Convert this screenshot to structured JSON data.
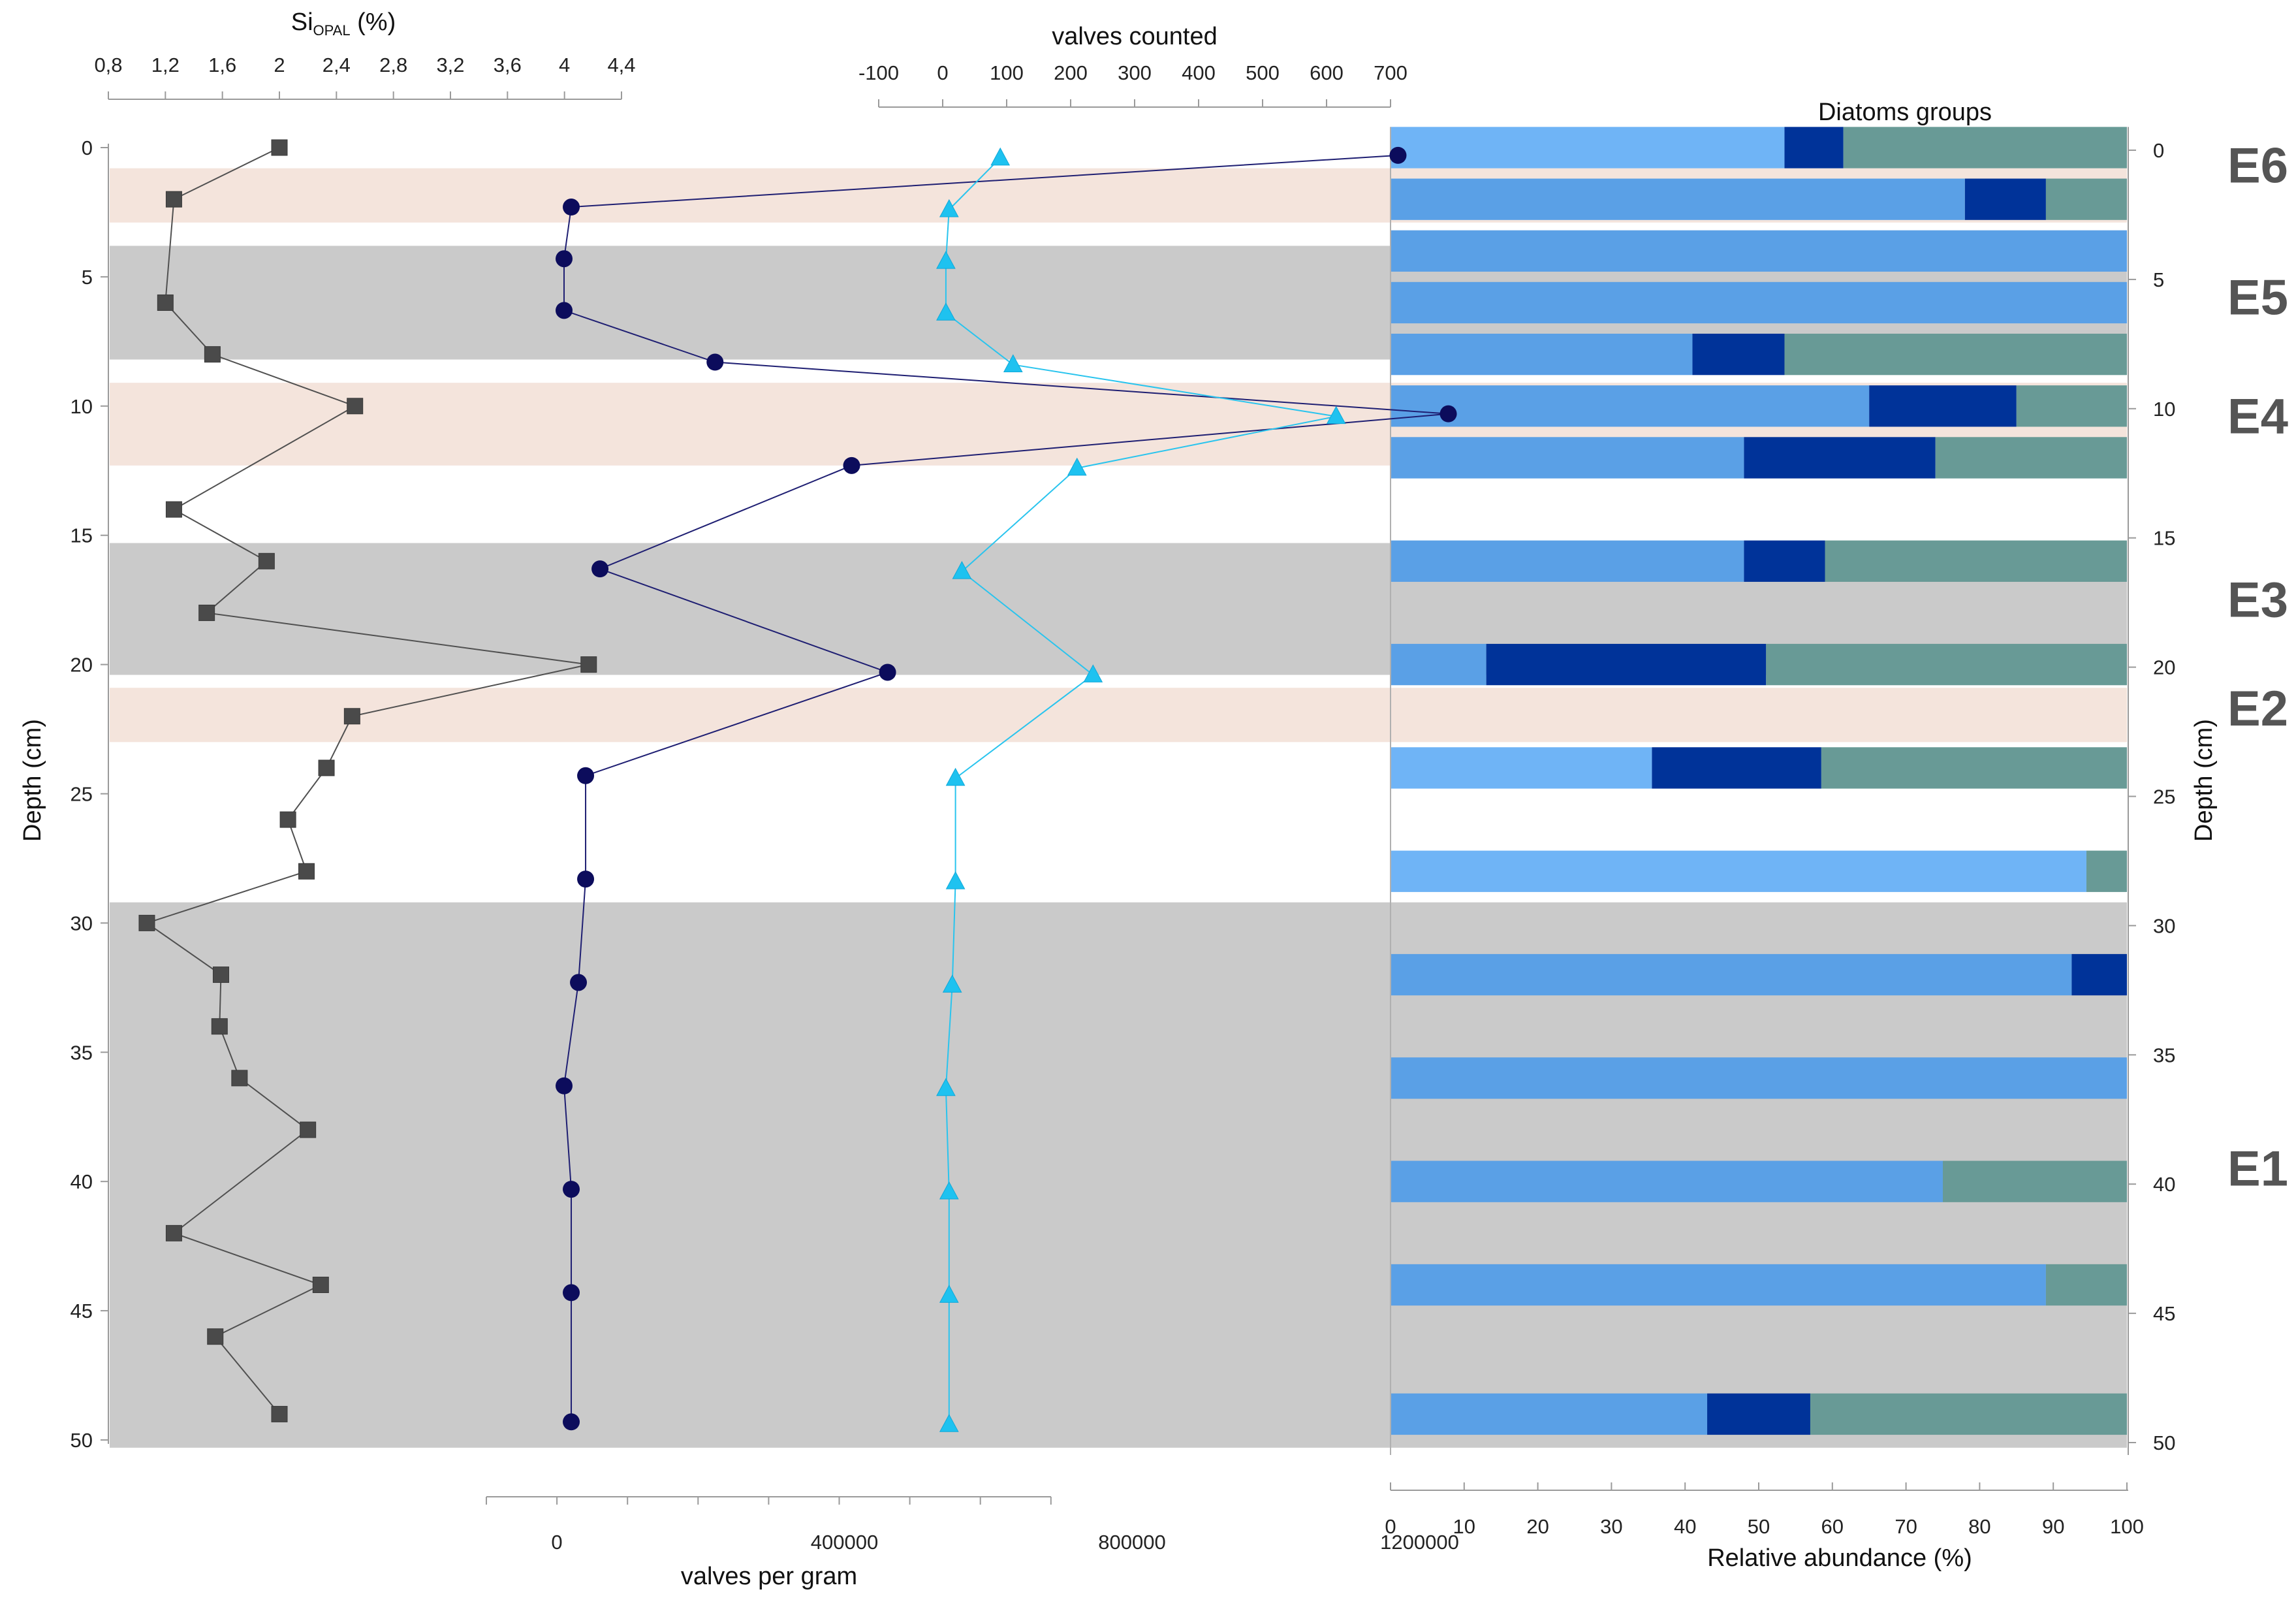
{
  "chart_data": {
    "type": "line",
    "colors": {
      "band_pink": "#f4e4dc",
      "band_gray": "#cacaca",
      "siopal_line": "#505050",
      "vpg_line": "#1e1e72",
      "vpg_marker": "#0c0c5c",
      "vc_line": "#29c4ee",
      "vc_marker": "#1ec2f0",
      "bar_light": "#6fb4f6",
      "bar_mid": "#5aa0e6",
      "bar_dark": "#003399",
      "bar_teal": "#689a96"
    },
    "depth_axis": {
      "label": "Depth (cm)",
      "ylim": [
        0,
        50
      ],
      "ticks": [
        "0",
        "5",
        "10",
        "15",
        "20",
        "25",
        "30",
        "35",
        "40",
        "45",
        "50"
      ]
    },
    "siopal": {
      "title_main": "Si",
      "title_sub": "OPAL",
      "title_unit": " (%)",
      "xlim": [
        0.8,
        4.4
      ],
      "ticks": [
        "0,8",
        "1,2",
        "1,6",
        "2",
        "2,4",
        "2,8",
        "3,2",
        "3,6",
        "4",
        "4,4"
      ],
      "depth": [
        0,
        2,
        6,
        8,
        10,
        14,
        16,
        18,
        20,
        22,
        24,
        26,
        28,
        30,
        32,
        34,
        36,
        38,
        42,
        44,
        46,
        49
      ],
      "values": [
        2.0,
        1.26,
        1.2,
        1.53,
        2.53,
        1.26,
        1.91,
        1.49,
        4.17,
        2.51,
        2.33,
        2.06,
        2.19,
        1.07,
        1.59,
        1.58,
        1.72,
        2.2,
        1.26,
        2.29,
        1.55,
        2.0
      ]
    },
    "valves_per_gram": {
      "title": "valves per gram",
      "xlim": [
        -200000,
        1400000
      ],
      "ticks": [
        "0",
        "400000",
        "800000",
        "1200000"
      ],
      "tick_values": [
        0,
        400000,
        800000,
        1200000
      ],
      "depth": [
        0.3,
        2.3,
        4.3,
        6.3,
        8.3,
        10.3,
        12.3,
        16.3,
        20.3,
        24.3,
        28.3,
        32.3,
        36.3,
        40.3,
        44.3,
        49.3
      ],
      "values": [
        1170000,
        20000,
        10000,
        10000,
        220000,
        1240000,
        410000,
        60000,
        460000,
        40000,
        40000,
        30000,
        10000,
        20000,
        20000,
        20000
      ]
    },
    "valves_counted": {
      "title": "valves counted",
      "xlim": [
        -100,
        700
      ],
      "ticks": [
        "-100",
        "0",
        "100",
        "200",
        "300",
        "400",
        "500",
        "600",
        "700"
      ],
      "depth": [
        0.4,
        2.4,
        4.4,
        6.4,
        8.4,
        10.4,
        12.4,
        16.4,
        20.4,
        24.4,
        28.4,
        32.4,
        36.4,
        40.4,
        44.4,
        49.4
      ],
      "values": [
        90,
        10,
        5,
        5,
        110,
        615,
        210,
        30,
        235,
        20,
        20,
        15,
        5,
        10,
        10,
        10
      ]
    },
    "diatoms": {
      "title": "Diatoms groups",
      "xlabel": "Relative abundance (%)",
      "xlim": [
        0,
        100
      ],
      "ticks": [
        "0",
        "10",
        "20",
        "30",
        "40",
        "50",
        "60",
        "70",
        "80",
        "90",
        "100"
      ],
      "samples": [
        {
          "depth_top": -0.8,
          "depth_bottom": 0.8,
          "light": 53.5,
          "mid": 0,
          "dark": 8,
          "teal": 38.5
        },
        {
          "depth_top": 1.2,
          "depth_bottom": 2.8,
          "light": 0,
          "mid": 78,
          "dark": 11,
          "teal": 11
        },
        {
          "depth_top": 3.2,
          "depth_bottom": 4.8,
          "light": 0,
          "mid": 100,
          "dark": 0,
          "teal": 0
        },
        {
          "depth_top": 5.2,
          "depth_bottom": 6.8,
          "light": 0,
          "mid": 100,
          "dark": 0,
          "teal": 0
        },
        {
          "depth_top": 7.2,
          "depth_bottom": 8.8,
          "light": 0,
          "mid": 41,
          "dark": 12.5,
          "teal": 46.5
        },
        {
          "depth_top": 9.2,
          "depth_bottom": 10.8,
          "light": 0,
          "mid": 65,
          "dark": 20,
          "teal": 15
        },
        {
          "depth_top": 11.2,
          "depth_bottom": 12.8,
          "light": 0,
          "mid": 48,
          "dark": 26,
          "teal": 26
        },
        {
          "depth_top": 15.2,
          "depth_bottom": 16.8,
          "light": 0,
          "mid": 48,
          "dark": 11,
          "teal": 41
        },
        {
          "depth_top": 19.2,
          "depth_bottom": 20.8,
          "light": 0,
          "mid": 13,
          "dark": 38,
          "teal": 49
        },
        {
          "depth_top": 23.2,
          "depth_bottom": 24.8,
          "light": 35.5,
          "mid": 0,
          "dark": 23,
          "teal": 41.5
        },
        {
          "depth_top": 27.2,
          "depth_bottom": 28.8,
          "light": 94.5,
          "mid": 0,
          "dark": 0,
          "teal": 5.5
        },
        {
          "depth_top": 31.2,
          "depth_bottom": 32.8,
          "light": 0,
          "mid": 92.5,
          "dark": 7.5,
          "teal": 0
        },
        {
          "depth_top": 35.2,
          "depth_bottom": 36.8,
          "light": 0,
          "mid": 100,
          "dark": 0,
          "teal": 0
        },
        {
          "depth_top": 39.2,
          "depth_bottom": 40.8,
          "light": 0,
          "mid": 75,
          "dark": 0,
          "teal": 25
        },
        {
          "depth_top": 43.2,
          "depth_bottom": 44.8,
          "light": 0,
          "mid": 89,
          "dark": 0,
          "teal": 11
        },
        {
          "depth_top": 48.2,
          "depth_bottom": 49.8,
          "light": 0,
          "mid": 43,
          "dark": 14,
          "teal": 43
        }
      ]
    },
    "bands": [
      {
        "from": 0.8,
        "to": 2.9,
        "color": "pink",
        "label": "E6"
      },
      {
        "from": 3.8,
        "to": 8.2,
        "color": "gray",
        "label": "E5"
      },
      {
        "from": 9.1,
        "to": 12.3,
        "color": "pink",
        "label": "E4"
      },
      {
        "from": 15.3,
        "to": 20.4,
        "color": "gray",
        "label": "E3"
      },
      {
        "from": 20.9,
        "to": 23.0,
        "color": "pink",
        "label": "E2"
      },
      {
        "from": 29.2,
        "to": 50.3,
        "color": "gray",
        "label": "E1"
      }
    ]
  }
}
